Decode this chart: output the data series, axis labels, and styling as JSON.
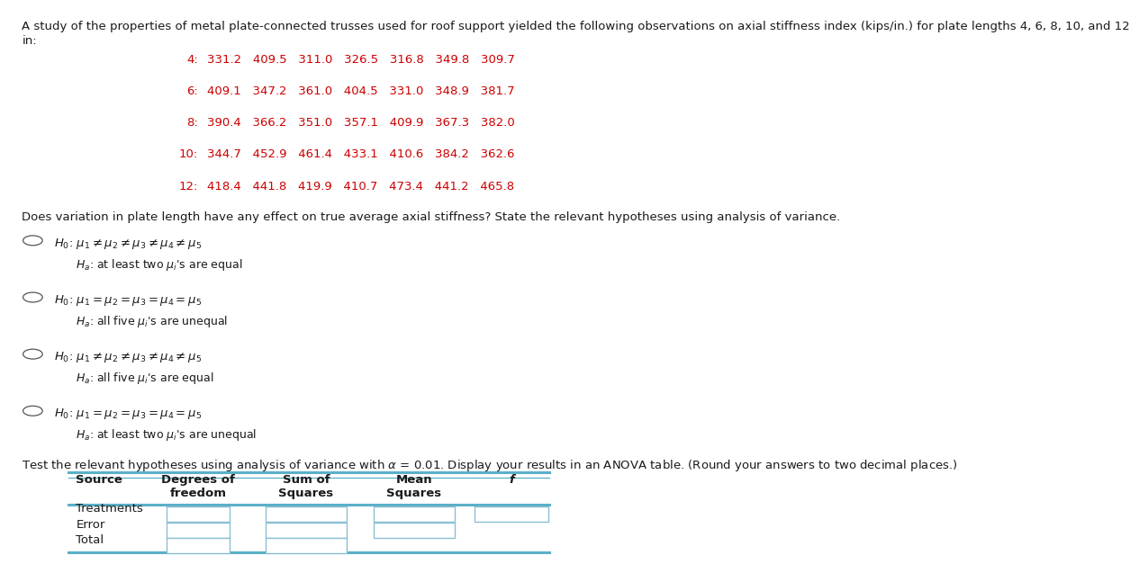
{
  "title_line1": "A study of the properties of metal plate-connected trusses used for roof support yielded the following observations on axial stiffness index (kips/in.) for plate lengths 4, 6, 8, 10, and 12",
  "title_line2": "in:",
  "data_rows": [
    {
      "label": "4:",
      "values": "331.2   409.5   311.0   326.5   316.8   349.8   309.7"
    },
    {
      "label": "6:",
      "values": "409.1   347.2   361.0   404.5   331.0   348.9   381.7"
    },
    {
      "label": "8:",
      "values": "390.4   366.2   351.0   357.1   409.9   367.3   382.0"
    },
    {
      "label": "10:",
      "values": "344.7   452.9   461.4   433.1   410.6   384.2   362.6"
    },
    {
      "label": "12:",
      "values": "418.4   441.8   419.9   410.7   473.4   441.2   465.8"
    }
  ],
  "data_color": "#cc0000",
  "question_text": "Does variation in plate length have any effect on true average axial stiffness? State the relevant hypotheses using analysis of variance.",
  "options": [
    {
      "h0": "$H_0$: $\\mu_1 \\neq \\mu_2 \\neq \\mu_3 \\neq \\mu_4 \\neq \\mu_5$",
      "ha": "$H_a$: at least two $\\mu_i$'s are equal",
      "selected": false
    },
    {
      "h0": "$H_0$: $\\mu_1 = \\mu_2 = \\mu_3 = \\mu_4 = \\mu_5$",
      "ha": "$H_a$: all five $\\mu_i$'s are unequal",
      "selected": false
    },
    {
      "h0": "$H_0$: $\\mu_1 \\neq \\mu_2 \\neq \\mu_3 \\neq \\mu_4 \\neq \\mu_5$",
      "ha": "$H_a$: all five $\\mu_i$'s are equal",
      "selected": false
    },
    {
      "h0": "$H_0$: $\\mu_1 = \\mu_2 = \\mu_3 = \\mu_4 = \\mu_5$",
      "ha": "$H_a$: at least two $\\mu_i$'s are unequal",
      "selected": false
    }
  ],
  "anova_intro": "Test the relevant hypotheses using analysis of variance with $\\alpha$ = 0.01. Display your results in an ANOVA table. (Round your answers to two decimal places.)",
  "table_col_headers": [
    "Source",
    "Degrees of\nfreedom",
    "Sum of\nSquares",
    "Mean\nSquares",
    "f"
  ],
  "table_rows": [
    "Treatments",
    "Error",
    "Total"
  ],
  "box_color": "#8bbfd4",
  "background_color": "#ffffff",
  "text_color": "#1a1a1a",
  "body_font_size": 9.5
}
